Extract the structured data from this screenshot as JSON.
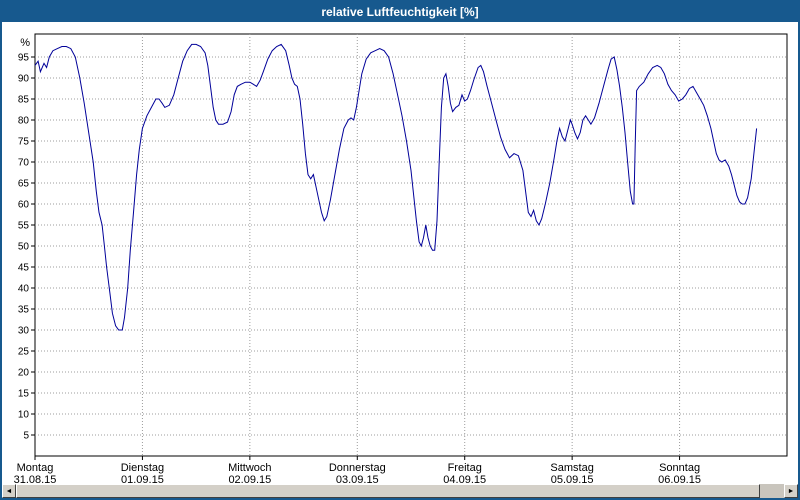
{
  "window": {
    "title": "relative Luftfeuchtigkeit [%]"
  },
  "colors": {
    "title_bar": "#17598e",
    "window_border": "#17598e",
    "line": "#000099",
    "grid": "#9c9c9c",
    "scrollbar_face": "#d4d0c8"
  },
  "scrollbar": {
    "left_arrow": "◄",
    "right_arrow": "►"
  },
  "chart_data": {
    "type": "line",
    "title": "relative Luftfeuchtigkeit [%]",
    "xlabel": "",
    "ylabel": "%",
    "ylim": [
      0,
      100
    ],
    "xlim": [
      0,
      168
    ],
    "grid": "dotted",
    "grid_color": "#9c9c9c",
    "line_color": "#000099",
    "legend": "none",
    "yticks": [
      95,
      90,
      85,
      80,
      75,
      70,
      65,
      60,
      55,
      50,
      45,
      40,
      35,
      30,
      25,
      20,
      15,
      10,
      5
    ],
    "x_unit": "hours",
    "x_day_ticks": [
      {
        "hour": 0,
        "day": "Montag",
        "date": "31.08.15"
      },
      {
        "hour": 24,
        "day": "Dienstag",
        "date": "01.09.15"
      },
      {
        "hour": 48,
        "day": "Mittwoch",
        "date": "02.09.15"
      },
      {
        "hour": 72,
        "day": "Donnerstag",
        "date": "03.09.15"
      },
      {
        "hour": 96,
        "day": "Freitag",
        "date": "04.09.15"
      },
      {
        "hour": 120,
        "day": "Samstag",
        "date": "05.09.15"
      },
      {
        "hour": 144,
        "day": "Sonntag",
        "date": "06.09.15"
      }
    ],
    "series": [
      {
        "name": "relative Luftfeuchtigkeit",
        "points": [
          [
            0,
            93
          ],
          [
            0.7,
            94
          ],
          [
            1.2,
            91.5
          ],
          [
            2,
            93.5
          ],
          [
            2.6,
            92.5
          ],
          [
            3.2,
            95
          ],
          [
            4,
            96.5
          ],
          [
            5,
            97
          ],
          [
            6,
            97.5
          ],
          [
            7,
            97.5
          ],
          [
            8,
            97
          ],
          [
            9,
            95
          ],
          [
            10,
            90
          ],
          [
            11,
            84
          ],
          [
            12,
            77
          ],
          [
            13,
            70
          ],
          [
            13.7,
            63
          ],
          [
            14.3,
            58
          ],
          [
            15,
            55
          ],
          [
            15.5,
            50
          ],
          [
            16,
            45
          ],
          [
            16.7,
            39
          ],
          [
            17.3,
            34
          ],
          [
            18,
            31
          ],
          [
            18.7,
            30
          ],
          [
            19.5,
            30
          ],
          [
            20,
            33
          ],
          [
            20.7,
            40
          ],
          [
            21.3,
            49
          ],
          [
            22,
            58
          ],
          [
            22.7,
            67
          ],
          [
            23.3,
            73
          ],
          [
            24,
            78
          ],
          [
            25,
            81
          ],
          [
            26,
            83
          ],
          [
            27,
            85
          ],
          [
            27.7,
            85
          ],
          [
            28.4,
            84
          ],
          [
            29,
            83
          ],
          [
            30,
            83.5
          ],
          [
            31,
            86
          ],
          [
            32,
            90
          ],
          [
            33,
            94
          ],
          [
            34,
            96.5
          ],
          [
            35,
            98
          ],
          [
            36,
            98
          ],
          [
            37,
            97.5
          ],
          [
            38,
            96
          ],
          [
            38.6,
            93
          ],
          [
            39.2,
            88
          ],
          [
            39.8,
            83
          ],
          [
            40.4,
            80
          ],
          [
            41,
            79
          ],
          [
            42,
            79
          ],
          [
            43,
            79.5
          ],
          [
            43.8,
            82
          ],
          [
            44.5,
            86
          ],
          [
            45.2,
            88
          ],
          [
            46,
            88.5
          ],
          [
            47,
            89
          ],
          [
            48,
            89
          ],
          [
            48.8,
            88.5
          ],
          [
            49.5,
            88
          ],
          [
            50.3,
            89.5
          ],
          [
            51,
            91.5
          ],
          [
            52,
            94.5
          ],
          [
            53,
            96.5
          ],
          [
            54,
            97.5
          ],
          [
            55,
            98
          ],
          [
            56,
            96.5
          ],
          [
            56.8,
            93
          ],
          [
            57.4,
            90
          ],
          [
            58,
            88.5
          ],
          [
            58.6,
            88
          ],
          [
            59.2,
            85
          ],
          [
            59.8,
            79
          ],
          [
            60.4,
            72
          ],
          [
            61,
            67
          ],
          [
            61.6,
            66
          ],
          [
            62.2,
            67
          ],
          [
            62.8,
            64
          ],
          [
            63.4,
            61
          ],
          [
            64,
            58
          ],
          [
            64.6,
            56
          ],
          [
            65.2,
            57
          ],
          [
            66,
            61
          ],
          [
            67,
            67
          ],
          [
            68,
            73
          ],
          [
            69,
            78
          ],
          [
            70,
            80
          ],
          [
            70.6,
            80.5
          ],
          [
            71.2,
            80
          ],
          [
            71.8,
            83
          ],
          [
            72.4,
            87
          ],
          [
            73,
            91
          ],
          [
            74,
            94.5
          ],
          [
            75,
            96
          ],
          [
            76,
            96.5
          ],
          [
            77,
            97
          ],
          [
            78,
            96.5
          ],
          [
            79,
            95
          ],
          [
            80,
            91
          ],
          [
            81,
            86
          ],
          [
            82,
            81
          ],
          [
            83,
            75
          ],
          [
            84,
            68
          ],
          [
            84.6,
            62
          ],
          [
            85.2,
            56
          ],
          [
            85.8,
            51
          ],
          [
            86.3,
            50
          ],
          [
            86.8,
            52
          ],
          [
            87.3,
            55
          ],
          [
            87.8,
            52
          ],
          [
            88.3,
            50
          ],
          [
            88.8,
            49
          ],
          [
            89.3,
            49
          ],
          [
            89.8,
            56
          ],
          [
            90.3,
            70
          ],
          [
            90.8,
            83
          ],
          [
            91.3,
            90
          ],
          [
            91.8,
            91
          ],
          [
            92.3,
            88
          ],
          [
            92.8,
            84
          ],
          [
            93.3,
            82
          ],
          [
            94,
            83
          ],
          [
            94.7,
            83.5
          ],
          [
            95.4,
            86
          ],
          [
            96,
            84.5
          ],
          [
            96.6,
            85
          ],
          [
            97.3,
            87
          ],
          [
            98,
            89.5
          ],
          [
            99,
            92.5
          ],
          [
            99.6,
            93
          ],
          [
            100.2,
            91.5
          ],
          [
            101,
            88
          ],
          [
            102,
            84
          ],
          [
            103,
            80
          ],
          [
            104,
            76
          ],
          [
            105,
            73
          ],
          [
            106,
            71
          ],
          [
            107,
            72
          ],
          [
            108,
            71.5
          ],
          [
            109,
            68
          ],
          [
            109.6,
            63
          ],
          [
            110.2,
            58
          ],
          [
            110.8,
            57
          ],
          [
            111.4,
            58.5
          ],
          [
            112,
            56
          ],
          [
            112.6,
            55
          ],
          [
            113.2,
            56.5
          ],
          [
            114,
            60
          ],
          [
            115,
            65
          ],
          [
            116,
            71
          ],
          [
            116.6,
            75
          ],
          [
            117.2,
            78
          ],
          [
            117.8,
            76
          ],
          [
            118.4,
            75
          ],
          [
            119,
            77.5
          ],
          [
            119.6,
            80
          ],
          [
            120,
            79
          ],
          [
            120.6,
            77
          ],
          [
            121.2,
            75.5
          ],
          [
            121.8,
            77
          ],
          [
            122.4,
            80
          ],
          [
            123,
            81
          ],
          [
            123.6,
            80
          ],
          [
            124.2,
            79
          ],
          [
            125,
            80.5
          ],
          [
            126,
            84
          ],
          [
            127,
            88
          ],
          [
            128,
            92
          ],
          [
            128.7,
            94.5
          ],
          [
            129.4,
            95
          ],
          [
            130,
            92
          ],
          [
            130.6,
            88
          ],
          [
            131.2,
            83
          ],
          [
            131.8,
            77
          ],
          [
            132.4,
            70
          ],
          [
            133,
            63
          ],
          [
            133.5,
            60
          ],
          [
            133.8,
            60
          ],
          [
            134.1,
            75
          ],
          [
            134.4,
            87
          ],
          [
            135,
            88
          ],
          [
            136,
            89
          ],
          [
            137,
            91
          ],
          [
            138,
            92.5
          ],
          [
            139,
            93
          ],
          [
            139.8,
            92.5
          ],
          [
            140.6,
            91
          ],
          [
            141.4,
            88.5
          ],
          [
            142.2,
            87
          ],
          [
            143,
            86
          ],
          [
            143.8,
            84.5
          ],
          [
            144.6,
            85
          ],
          [
            145.4,
            86
          ],
          [
            146.2,
            87.5
          ],
          [
            147,
            88
          ],
          [
            147.8,
            86.5
          ],
          [
            148.6,
            85
          ],
          [
            149.4,
            83.5
          ],
          [
            150.2,
            81
          ],
          [
            151,
            78
          ],
          [
            151.6,
            75
          ],
          [
            152.2,
            72
          ],
          [
            152.8,
            70.5
          ],
          [
            153.4,
            70
          ],
          [
            154.2,
            70.5
          ],
          [
            155,
            69
          ],
          [
            155.6,
            67
          ],
          [
            156.2,
            64.5
          ],
          [
            156.8,
            62
          ],
          [
            157.4,
            60.5
          ],
          [
            158,
            60
          ],
          [
            158.6,
            60
          ],
          [
            159.2,
            61.5
          ],
          [
            160,
            66
          ],
          [
            160.6,
            72
          ],
          [
            161.2,
            78
          ]
        ]
      }
    ]
  }
}
